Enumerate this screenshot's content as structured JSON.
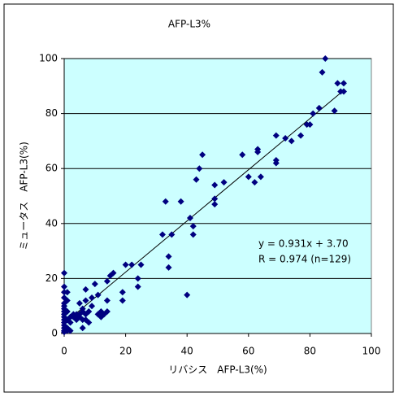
{
  "chart_data": {
    "type": "scatter",
    "title": "AFP-L3%",
    "xlabel": "リバシス　AFP-L3(%)",
    "ylabel": "ミュータス　AFP-L3(%)",
    "annotations": [
      "y = 0.931x + 3.70",
      "R = 0.974 (n=129)"
    ],
    "trendline": {
      "slope": 0.931,
      "intercept": 3.7
    },
    "color": "#000080",
    "background": "#ccffff",
    "grid": true,
    "xlim": [
      0,
      100
    ],
    "xticks": [
      0,
      20,
      40,
      60,
      80,
      100
    ],
    "ylim": [
      0,
      100
    ],
    "yticks": [
      0,
      20,
      40,
      60,
      80,
      100
    ],
    "x": [
      0,
      0,
      0,
      0,
      0,
      0,
      0,
      0,
      0,
      0,
      0,
      0,
      0,
      0,
      0,
      0,
      1,
      1,
      1,
      1,
      1,
      1,
      2,
      2,
      2,
      3,
      3,
      4,
      4,
      5,
      5,
      5,
      6,
      6,
      6,
      6,
      7,
      7,
      7,
      7,
      8,
      8,
      9,
      9,
      10,
      11,
      11,
      12,
      12,
      13,
      14,
      14,
      14,
      15,
      16,
      19,
      19,
      20,
      22,
      24,
      24,
      25,
      32,
      33,
      34,
      34,
      35,
      38,
      40,
      41,
      42,
      42,
      43,
      44,
      45,
      49,
      49,
      49,
      52,
      58,
      60,
      62,
      63,
      63,
      64,
      69,
      69,
      69,
      72,
      74,
      77,
      79,
      80,
      81,
      83,
      84,
      85,
      88,
      89,
      90,
      91,
      91
    ],
    "y": [
      22,
      17,
      15,
      13,
      11,
      10,
      9,
      8,
      7,
      6,
      5,
      4,
      3,
      2,
      1,
      0.5,
      15,
      12,
      8,
      5,
      2,
      1,
      4,
      6,
      1,
      7,
      6,
      7,
      5,
      6,
      11,
      7,
      8,
      2,
      5,
      9,
      16,
      12,
      7,
      5,
      4,
      8,
      13,
      10,
      18,
      14,
      7,
      6,
      8,
      7,
      19,
      12,
      8,
      21,
      22,
      12,
      15,
      25,
      25,
      20,
      17,
      25,
      36,
      48,
      28,
      24,
      36,
      48,
      14,
      42,
      36,
      39,
      56,
      60,
      65,
      54,
      49,
      47,
      55,
      65,
      57,
      55,
      67,
      66,
      57,
      72,
      62,
      63,
      71,
      70,
      72,
      76,
      76,
      80,
      82,
      95,
      100,
      81,
      91,
      88,
      91,
      88
    ]
  }
}
